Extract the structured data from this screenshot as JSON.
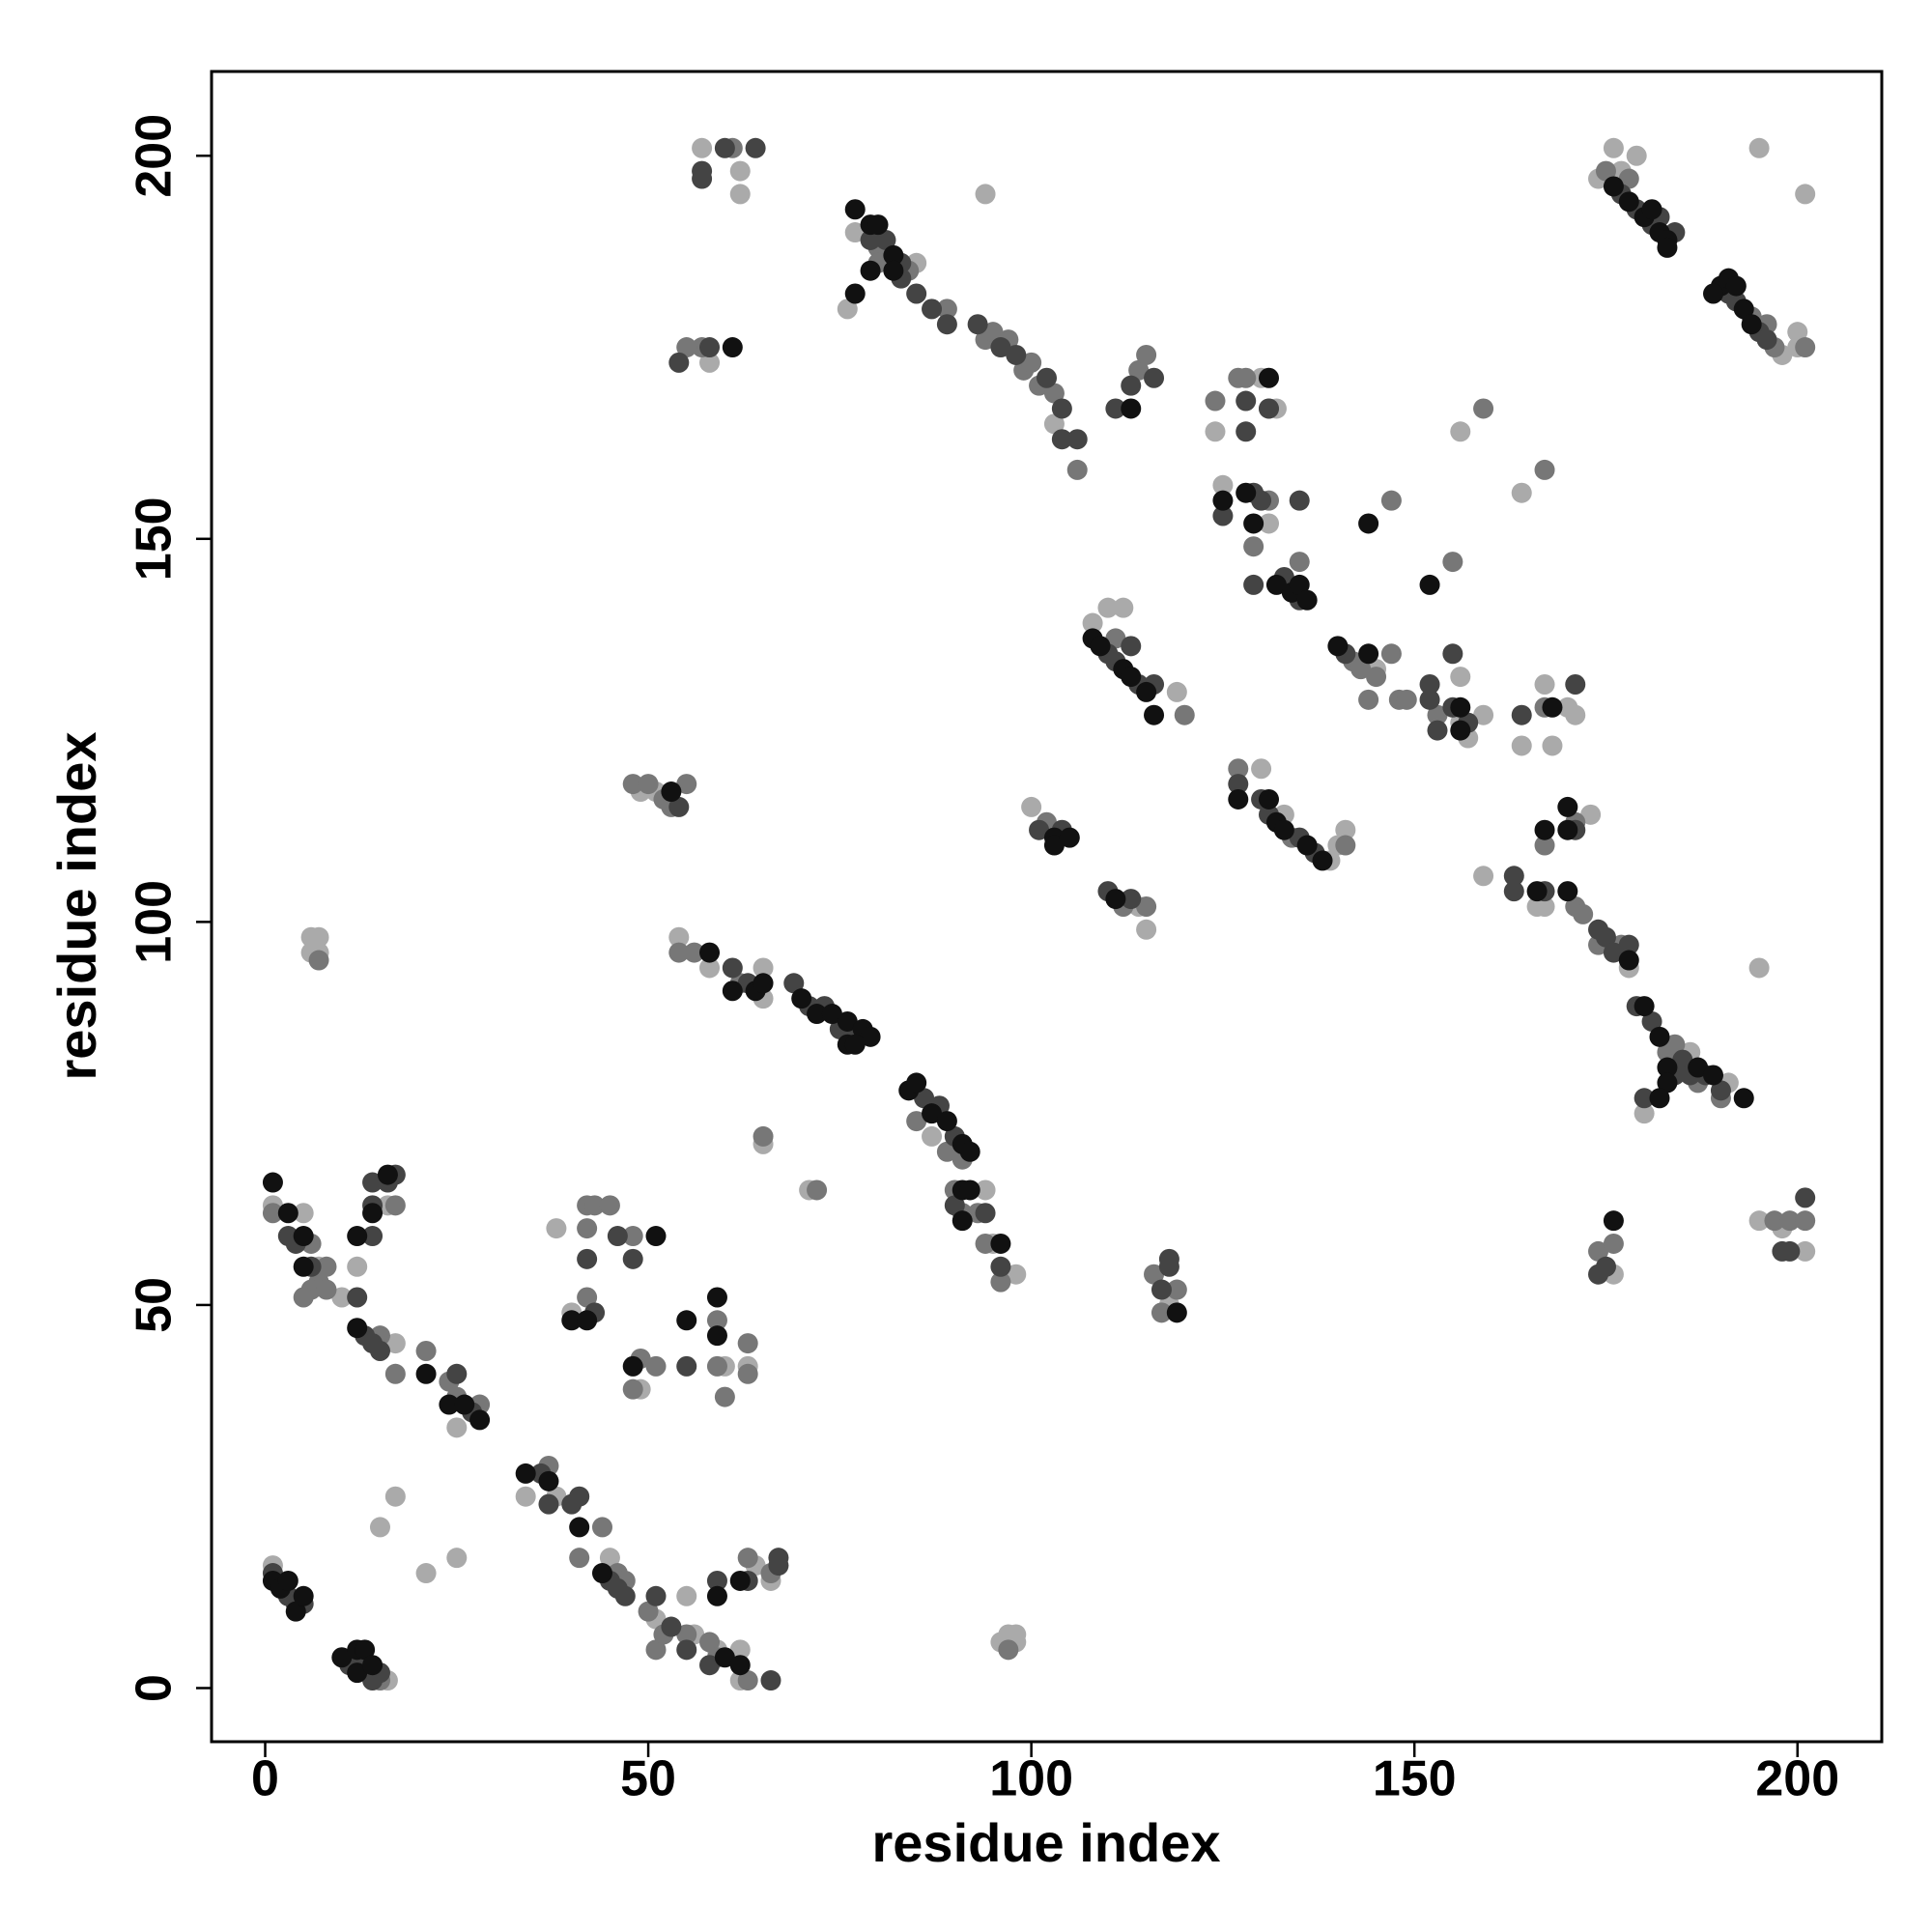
{
  "chart_data": {
    "type": "scatter",
    "xlabel": "residue index",
    "ylabel": "residue index",
    "xlim": [
      -7,
      211
    ],
    "ylim": [
      -7,
      211
    ],
    "xticks": [
      0,
      50,
      100,
      150,
      200
    ],
    "yticks": [
      0,
      50,
      100,
      150,
      200
    ],
    "grid": false,
    "series": [
      {
        "color": "#aaaaaa",
        "x": [
          1,
          16,
          15,
          17,
          21,
          25,
          1,
          5,
          7,
          10,
          16,
          12,
          17,
          25,
          34,
          38,
          45,
          51,
          55,
          56,
          59,
          62,
          62,
          64,
          66,
          96,
          97,
          98,
          98,
          38,
          40,
          49,
          60,
          63,
          6,
          6,
          7,
          7,
          65,
          71,
          54,
          58,
          65,
          65,
          87,
          94,
          95,
          98,
          49,
          51,
          100,
          114,
          115,
          118,
          58,
          57,
          62,
          62,
          77,
          85,
          76,
          103,
          94,
          108,
          110,
          112,
          119,
          124,
          125,
          130,
          132,
          131,
          130,
          140,
          139,
          141,
          133,
          145,
          156,
          156,
          157,
          159,
          156,
          164,
          164,
          167,
          168,
          171,
          170,
          159,
          166,
          167,
          173,
          178,
          186,
          191,
          180,
          176,
          195,
          198,
          201,
          195,
          174,
          176,
          177,
          179,
          198,
          200,
          200,
          195,
          201
        ],
        "values": [
          16,
          1,
          21,
          25,
          15,
          17,
          63,
          62,
          55,
          51,
          63,
          55,
          45,
          34,
          25,
          25,
          17,
          9,
          12,
          7,
          5,
          1,
          5,
          16,
          14,
          6,
          7,
          7,
          6,
          60,
          49,
          39,
          42,
          42,
          96,
          98,
          98,
          96,
          71,
          65,
          98,
          94,
          94,
          90,
          72,
          65,
          58,
          54,
          117,
          117,
          115,
          102,
          99,
          50,
          173,
          201,
          198,
          195,
          190,
          186,
          180,
          165,
          195,
          139,
          141,
          141,
          130,
          164,
          157,
          171,
          167,
          152,
          120,
          110,
          108,
          112,
          114,
          133,
          132,
          126,
          124,
          127,
          164,
          156,
          123,
          131,
          123,
          127,
          128,
          106,
          102,
          102,
          114,
          94,
          83,
          79,
          75,
          54,
          61,
          60,
          57,
          94,
          197,
          201,
          198,
          200,
          174,
          177,
          175,
          201,
          195
        ]
      },
      {
        "color": "#777777",
        "x": [
          15,
          1,
          6,
          7,
          8,
          6,
          8,
          5,
          17,
          15,
          17,
          21,
          24,
          25,
          28,
          37,
          41,
          44,
          46,
          47,
          50,
          51,
          52,
          55,
          58,
          59,
          63,
          63,
          66,
          97,
          42,
          42,
          43,
          42,
          45,
          48,
          48,
          49,
          51,
          59,
          59,
          60,
          63,
          63,
          7,
          65,
          72,
          54,
          56,
          62,
          85,
          89,
          91,
          90,
          91,
          93,
          94,
          96,
          48,
          50,
          52,
          55,
          53,
          102,
          112,
          115,
          116,
          119,
          117,
          57,
          55,
          61,
          80,
          84,
          80,
          89,
          94,
          95,
          97,
          99,
          100,
          101,
          103,
          106,
          114,
          115,
          111,
          120,
          124,
          127,
          128,
          131,
          129,
          131,
          135,
          127,
          134,
          141,
          142,
          143,
          145,
          144,
          147,
          148,
          149,
          153,
          147,
          155,
          159,
          167,
          167,
          167,
          171,
          171,
          172,
          174,
          177,
          183,
          184,
          187,
          190,
          174,
          176,
          197,
          199,
          201,
          175,
          178,
          194,
          196,
          197,
          201
        ],
        "values": [
          1,
          62,
          58,
          53,
          55,
          52,
          52,
          51,
          63,
          46,
          41,
          44,
          40,
          38,
          37,
          29,
          17,
          21,
          15,
          14,
          10,
          5,
          7,
          7,
          6,
          4,
          1,
          17,
          15,
          5,
          63,
          60,
          63,
          51,
          63,
          59,
          39,
          43,
          42,
          48,
          42,
          38,
          45,
          41,
          95,
          72,
          65,
          96,
          96,
          92,
          74,
          70,
          69,
          65,
          62,
          62,
          58,
          53,
          118,
          118,
          116,
          118,
          115,
          113,
          102,
          102,
          54,
          52,
          49,
          175,
          175,
          201,
          188,
          185,
          186,
          180,
          176,
          177,
          176,
          172,
          173,
          170,
          169,
          159,
          172,
          174,
          137,
          127,
          168,
          171,
          171,
          167,
          149,
          155,
          147,
          120,
          111,
          110,
          134,
          133,
          132,
          129,
          135,
          129,
          129,
          127,
          155,
          147,
          167,
          159,
          128,
          110,
          113,
          102,
          101,
          97,
          97,
          83,
          84,
          79,
          77,
          57,
          58,
          61,
          61,
          61,
          198,
          197,
          179,
          178,
          175,
          175
        ]
      },
      {
        "color": "#444444",
        "x": [
          1,
          3,
          4,
          5,
          11,
          13,
          14,
          15,
          3,
          4,
          6,
          14,
          14,
          14,
          16,
          17,
          12,
          13,
          14,
          15,
          25,
          27,
          36,
          37,
          40,
          41,
          45,
          46,
          47,
          51,
          53,
          55,
          58,
          66,
          59,
          63,
          67,
          67,
          42,
          43,
          46,
          48,
          55,
          61,
          63,
          69,
          71,
          73,
          75,
          77,
          86,
          88,
          90,
          90,
          94,
          96,
          54,
          101,
          104,
          110,
          113,
          117,
          118,
          118,
          54,
          58,
          60,
          64,
          57,
          57,
          79,
          81,
          83,
          83,
          85,
          87,
          89,
          93,
          96,
          98,
          102,
          104,
          104,
          106,
          111,
          113,
          116,
          110,
          111,
          113,
          114,
          116,
          125,
          128,
          128,
          129,
          129,
          130,
          131,
          133,
          135,
          135,
          127,
          130,
          131,
          135,
          137,
          141,
          152,
          152,
          153,
          155,
          157,
          155,
          164,
          171,
          163,
          163,
          167,
          171,
          174,
          175,
          176,
          178,
          179,
          181,
          184,
          185,
          186,
          188,
          190,
          180,
          174,
          175,
          198,
          199,
          201,
          177,
          179,
          181,
          182,
          184,
          191,
          192,
          195,
          196
        ],
        "values": [
          15,
          12,
          11,
          11,
          3,
          3,
          1,
          2,
          59,
          58,
          55,
          59,
          63,
          66,
          66,
          67,
          51,
          46,
          45,
          44,
          41,
          36,
          28,
          24,
          24,
          25,
          14,
          13,
          12,
          12,
          8,
          5,
          3,
          1,
          14,
          14,
          16,
          17,
          56,
          49,
          59,
          56,
          42,
          94,
          92,
          92,
          89,
          89,
          86,
          85,
          77,
          76,
          72,
          63,
          62,
          55,
          115,
          112,
          112,
          104,
          103,
          52,
          55,
          56,
          173,
          175,
          201,
          201,
          197,
          198,
          189,
          189,
          186,
          184,
          182,
          180,
          178,
          178,
          175,
          174,
          171,
          167,
          163,
          163,
          167,
          170,
          171,
          135,
          134,
          136,
          131,
          131,
          153,
          168,
          164,
          156,
          144,
          155,
          167,
          145,
          142,
          155,
          118,
          116,
          114,
          111,
          109,
          135,
          131,
          129,
          125,
          135,
          126,
          128,
          127,
          131,
          106,
          104,
          104,
          112,
          99,
          98,
          96,
          97,
          89,
          87,
          80,
          82,
          80,
          80,
          78,
          77,
          54,
          55,
          57,
          57,
          64,
          195,
          193,
          191,
          192,
          190,
          182,
          181,
          177,
          176
        ]
      },
      {
        "color": "#111111",
        "x": [
          1,
          2,
          3,
          4,
          5,
          10,
          12,
          12,
          13,
          14,
          1,
          3,
          5,
          5,
          12,
          14,
          16,
          12,
          21,
          24,
          26,
          28,
          34,
          37,
          41,
          44,
          60,
          62,
          59,
          62,
          40,
          42,
          51,
          48,
          55,
          59,
          59,
          58,
          61,
          64,
          65,
          70,
          72,
          74,
          76,
          78,
          79,
          76,
          77,
          84,
          85,
          87,
          89,
          91,
          92,
          91,
          92,
          91,
          96,
          53,
          103,
          103,
          105,
          111,
          119,
          61,
          77,
          79,
          80,
          82,
          82,
          79,
          77,
          113,
          108,
          109,
          112,
          113,
          115,
          116,
          125,
          128,
          129,
          131,
          132,
          134,
          135,
          136,
          127,
          131,
          132,
          133,
          136,
          138,
          140,
          144,
          156,
          156,
          144,
          152,
          168,
          166,
          167,
          170,
          170,
          170,
          178,
          180,
          182,
          183,
          187,
          189,
          193,
          183,
          182,
          176,
          176,
          178,
          180,
          182,
          183,
          183,
          181,
          190,
          191,
          193,
          194,
          189,
          192
        ],
        "values": [
          14,
          13,
          14,
          10,
          12,
          4,
          5,
          2,
          5,
          3,
          66,
          62,
          59,
          55,
          59,
          62,
          67,
          47,
          41,
          37,
          37,
          35,
          28,
          27,
          21,
          15,
          4,
          3,
          12,
          14,
          48,
          48,
          59,
          42,
          48,
          51,
          46,
          96,
          91,
          91,
          92,
          90,
          88,
          88,
          87,
          86,
          85,
          84,
          84,
          78,
          79,
          75,
          74,
          71,
          70,
          65,
          65,
          61,
          58,
          117,
          111,
          110,
          111,
          103,
          49,
          175,
          193,
          191,
          191,
          187,
          185,
          185,
          182,
          167,
          137,
          136,
          133,
          132,
          130,
          127,
          155,
          156,
          152,
          171,
          144,
          143,
          144,
          142,
          116,
          116,
          113,
          112,
          110,
          108,
          136,
          135,
          128,
          125,
          152,
          144,
          128,
          104,
          112,
          112,
          115,
          104,
          95,
          89,
          85,
          81,
          81,
          80,
          77,
          79,
          77,
          61,
          196,
          194,
          192,
          190,
          189,
          188,
          193,
          183,
          184,
          180,
          178,
          182,
          183
        ]
      }
    ]
  }
}
